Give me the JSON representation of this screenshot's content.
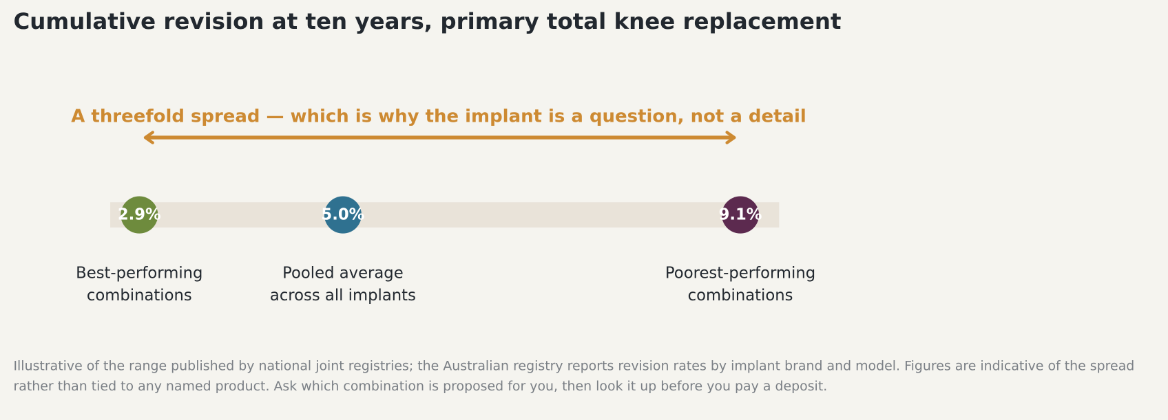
{
  "chart_data": {
    "type": "dot",
    "title": "Cumulative revision at ten years, primary total knee replacement",
    "annotation": "A threefold spread — which is why the implant is a question, not a detail",
    "categories": [
      "Best-performing combinations",
      "Pooled average across all implants",
      "Poorest-performing combinations"
    ],
    "values": [
      2.9,
      5.0,
      9.1
    ],
    "value_labels": [
      "2.9%",
      "5.0%",
      "9.1%"
    ],
    "colors": [
      "#6e8b3d",
      "#2f7190",
      "#5c2a4f"
    ],
    "annotation_color": "#cd8a32",
    "xlim": [
      2.6,
      9.5
    ],
    "note": "Illustrative of the range published by national joint registries; the Australian registry reports revision rates by implant brand and model. Figures are indicative of the spread rather than tied to any named product. Ask which combination is proposed for you, then look it up before you pay a deposit."
  }
}
